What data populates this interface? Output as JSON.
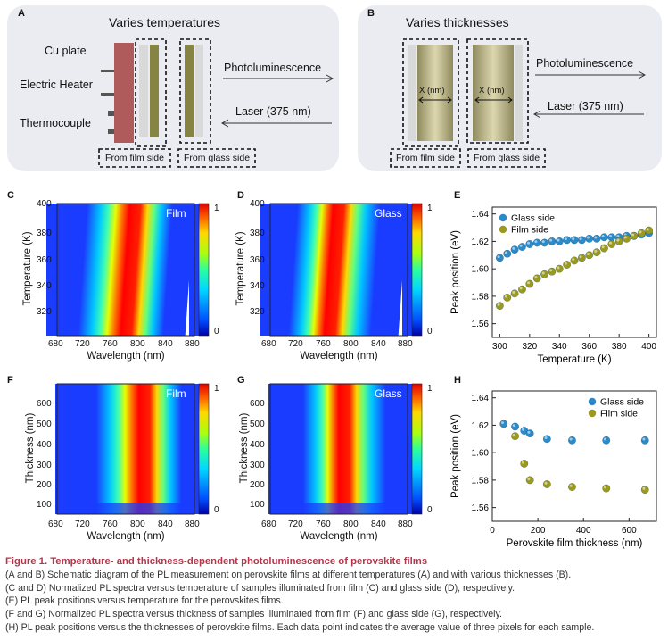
{
  "panels": {
    "A": {
      "letter": "A",
      "title": "Varies temperatures",
      "labels": [
        "Cu plate",
        "Electric Heater",
        "Thermocouple"
      ],
      "arrow_pl": "Photoluminescence",
      "arrow_laser": "Laser (375 nm)",
      "box1": "From film side",
      "box2": "From glass side"
    },
    "B": {
      "letter": "B",
      "title": "Varies thicknesses",
      "x_label": "X (nm)",
      "arrow_pl": "Photoluminescence",
      "arrow_laser": "Laser (375 nm)",
      "box1": "From film side",
      "box2": "From glass side"
    },
    "C": {
      "letter": "C",
      "tag": "Film",
      "xlabel": "Wavelength (nm)",
      "ylabel": "Temperature (K)",
      "xticks": [
        "680",
        "720",
        "760",
        "800",
        "840",
        "880"
      ],
      "yticks": [
        "320",
        "340",
        "360",
        "380",
        "400"
      ],
      "cbar": [
        "1",
        "0"
      ]
    },
    "D": {
      "letter": "D",
      "tag": "Glass",
      "xlabel": "Wavelength (nm)",
      "ylabel": "Temperature (K)",
      "xticks": [
        "680",
        "720",
        "760",
        "800",
        "840",
        "880"
      ],
      "yticks": [
        "320",
        "340",
        "360",
        "380",
        "400"
      ],
      "cbar": [
        "1",
        "0"
      ]
    },
    "E": {
      "letter": "E"
    },
    "F": {
      "letter": "F",
      "tag": "Film",
      "xlabel": "Wavelength (nm)",
      "ylabel": "Thickness (nm)",
      "xticks": [
        "680",
        "720",
        "760",
        "800",
        "840",
        "880"
      ],
      "yticks": [
        "100",
        "200",
        "300",
        "400",
        "500",
        "600"
      ],
      "cbar": [
        "1",
        "0"
      ]
    },
    "G": {
      "letter": "G",
      "tag": "Glass",
      "xlabel": "Wavelength (nm)",
      "ylabel": "Thickness (nm)",
      "xticks": [
        "680",
        "720",
        "760",
        "800",
        "840",
        "880"
      ],
      "yticks": [
        "100",
        "200",
        "300",
        "400",
        "500",
        "600"
      ],
      "cbar": [
        "1",
        "0"
      ]
    },
    "H": {
      "letter": "H"
    }
  },
  "chart_data": [
    {
      "type": "scatter",
      "xlabel": "Temperature (K)",
      "ylabel": "Peak position (eV)",
      "xlim": [
        295,
        405
      ],
      "ylim": [
        1.55,
        1.645
      ],
      "xticks": [
        300,
        320,
        340,
        360,
        380,
        400
      ],
      "yticks": [
        1.56,
        1.58,
        1.6,
        1.62,
        1.64
      ],
      "legend": "top-left",
      "series": [
        {
          "name": "Glass side",
          "color": "#2d8ac9",
          "x": [
            300,
            305,
            310,
            315,
            320,
            325,
            330,
            335,
            340,
            345,
            350,
            355,
            360,
            365,
            370,
            375,
            380,
            385,
            390,
            395,
            400
          ],
          "y": [
            1.608,
            1.611,
            1.614,
            1.616,
            1.618,
            1.619,
            1.619,
            1.62,
            1.62,
            1.621,
            1.621,
            1.621,
            1.622,
            1.622,
            1.623,
            1.623,
            1.623,
            1.624,
            1.624,
            1.625,
            1.626
          ]
        },
        {
          "name": "Film side",
          "color": "#9c9a1e",
          "x": [
            300,
            305,
            310,
            315,
            320,
            325,
            330,
            335,
            340,
            345,
            350,
            355,
            360,
            365,
            370,
            375,
            380,
            385,
            390,
            395,
            400
          ],
          "y": [
            1.573,
            1.579,
            1.582,
            1.585,
            1.589,
            1.593,
            1.596,
            1.598,
            1.6,
            1.603,
            1.606,
            1.608,
            1.61,
            1.612,
            1.615,
            1.618,
            1.62,
            1.622,
            1.624,
            1.626,
            1.628
          ]
        }
      ]
    },
    {
      "type": "scatter",
      "xlabel": "Perovskite film thickness (nm)",
      "ylabel": "Peak position (eV)",
      "xlim": [
        0,
        720
      ],
      "ylim": [
        1.55,
        1.645
      ],
      "xticks": [
        0,
        200,
        400,
        600
      ],
      "yticks": [
        1.56,
        1.58,
        1.6,
        1.62,
        1.64
      ],
      "legend": "top-right",
      "series": [
        {
          "name": "Glass side",
          "color": "#2d8ac9",
          "x": [
            50,
            100,
            140,
            165,
            240,
            350,
            500,
            670
          ],
          "y": [
            1.621,
            1.619,
            1.616,
            1.614,
            1.61,
            1.609,
            1.609,
            1.609
          ]
        },
        {
          "name": "Film side",
          "color": "#9c9a1e",
          "x": [
            100,
            140,
            165,
            240,
            350,
            500,
            670
          ],
          "y": [
            1.612,
            1.592,
            1.58,
            1.577,
            1.575,
            1.574,
            1.573
          ]
        }
      ]
    }
  ],
  "caption": {
    "title": "Figure 1. Temperature- and thickness-dependent photoluminescence of perovskite films",
    "lines": [
      "(A and B) Schematic diagram of the PL measurement on perovskite films at different temperatures (A) and with various thicknesses (B).",
      "(C and D) Normalized PL spectra versus temperature of samples illuminated from film (C) and glass side (D), respectively.",
      "(E) PL peak positions versus temperature for the perovskites films.",
      "(F and G) Normalized PL spectra versus thickness of samples illuminated from film (F) and glass side (G), respectively.",
      "(H) PL peak positions versus the thicknesses of perovskite films. Each data point indicates the average value of three pixels for each sample."
    ]
  }
}
